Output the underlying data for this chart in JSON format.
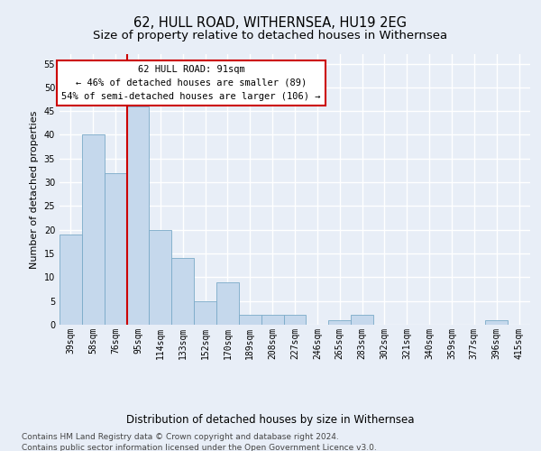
{
  "title": "62, HULL ROAD, WITHERNSEA, HU19 2EG",
  "subtitle": "Size of property relative to detached houses in Withernsea",
  "xlabel": "Distribution of detached houses by size in Withernsea",
  "ylabel": "Number of detached properties",
  "categories": [
    "39sqm",
    "58sqm",
    "76sqm",
    "95sqm",
    "114sqm",
    "133sqm",
    "152sqm",
    "170sqm",
    "189sqm",
    "208sqm",
    "227sqm",
    "246sqm",
    "265sqm",
    "283sqm",
    "302sqm",
    "321sqm",
    "340sqm",
    "359sqm",
    "377sqm",
    "396sqm",
    "415sqm"
  ],
  "values": [
    19,
    40,
    32,
    46,
    20,
    14,
    5,
    9,
    2,
    2,
    2,
    0,
    1,
    2,
    0,
    0,
    0,
    0,
    0,
    1,
    0
  ],
  "bar_color": "#c5d8ec",
  "bar_edge_color": "#7aaac8",
  "vline_color": "#cc0000",
  "annotation_lines": [
    "62 HULL ROAD: 91sqm",
    "← 46% of detached houses are smaller (89)",
    "54% of semi-detached houses are larger (106) →"
  ],
  "annotation_box_color": "#ffffff",
  "annotation_box_edge": "#cc0000",
  "ylim": [
    0,
    57
  ],
  "yticks": [
    0,
    5,
    10,
    15,
    20,
    25,
    30,
    35,
    40,
    45,
    50,
    55
  ],
  "background_color": "#e8eef7",
  "grid_color": "#ffffff",
  "footer": "Contains HM Land Registry data © Crown copyright and database right 2024.\nContains public sector information licensed under the Open Government Licence v3.0.",
  "title_fontsize": 10.5,
  "subtitle_fontsize": 9.5,
  "xlabel_fontsize": 8.5,
  "ylabel_fontsize": 8,
  "tick_fontsize": 7,
  "annotation_fontsize": 7.5,
  "footer_fontsize": 6.5
}
